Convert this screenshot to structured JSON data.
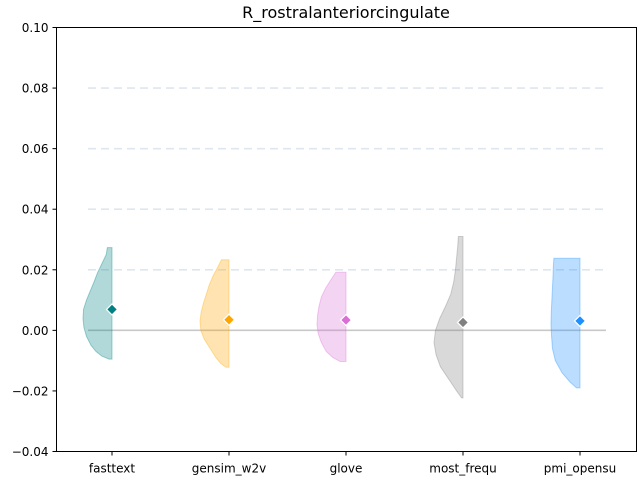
{
  "chart_data": {
    "type": "violin",
    "title": "R_rostralanteriorcingulate",
    "xlabel": "",
    "ylabel": "",
    "ylim": [
      -0.04,
      0.1
    ],
    "yticks": [
      "−0.04",
      "−0.02",
      "0.00",
      "0.02",
      "0.04",
      "0.06",
      "0.08",
      "0.10"
    ],
    "yticks_values": [
      -0.04,
      -0.02,
      0.0,
      0.02,
      0.04,
      0.06,
      0.08,
      0.1
    ],
    "grid": "dashed horizontal",
    "reference_line": 0.0,
    "categories": [
      "fasttext",
      "gensim_w2v",
      "glove",
      "most_frequ",
      "pmi_opensu"
    ],
    "series": [
      {
        "color": "#008080",
        "mean": 0.0069,
        "min": -0.0095,
        "max": 0.0273,
        "density_profile": [
          [
            -0.0095,
            0.1
          ],
          [
            -0.0085,
            0.35
          ],
          [
            -0.007,
            0.55
          ],
          [
            -0.005,
            0.72
          ],
          [
            -0.002,
            0.88
          ],
          [
            0.001,
            0.97
          ],
          [
            0.004,
            1.0
          ],
          [
            0.007,
            0.98
          ],
          [
            0.01,
            0.88
          ],
          [
            0.013,
            0.75
          ],
          [
            0.016,
            0.62
          ],
          [
            0.019,
            0.5
          ],
          [
            0.022,
            0.35
          ],
          [
            0.025,
            0.2
          ],
          [
            0.0273,
            0.16
          ]
        ]
      },
      {
        "color": "#FFA500",
        "mean": 0.0035,
        "min": -0.0122,
        "max": 0.0233,
        "density_profile": [
          [
            -0.0122,
            0.1
          ],
          [
            -0.011,
            0.28
          ],
          [
            -0.009,
            0.45
          ],
          [
            -0.006,
            0.65
          ],
          [
            -0.003,
            0.85
          ],
          [
            0.0,
            0.97
          ],
          [
            0.003,
            1.0
          ],
          [
            0.006,
            0.96
          ],
          [
            0.009,
            0.88
          ],
          [
            0.012,
            0.78
          ],
          [
            0.015,
            0.68
          ],
          [
            0.018,
            0.55
          ],
          [
            0.021,
            0.38
          ],
          [
            0.0233,
            0.26
          ]
        ]
      },
      {
        "color": "#DA70D6",
        "mean": 0.0034,
        "min": -0.0103,
        "max": 0.0192,
        "density_profile": [
          [
            -0.0103,
            0.2
          ],
          [
            -0.009,
            0.45
          ],
          [
            -0.007,
            0.68
          ],
          [
            -0.004,
            0.85
          ],
          [
            -0.001,
            0.96
          ],
          [
            0.002,
            1.0
          ],
          [
            0.005,
            0.98
          ],
          [
            0.008,
            0.93
          ],
          [
            0.011,
            0.85
          ],
          [
            0.014,
            0.7
          ],
          [
            0.017,
            0.5
          ],
          [
            0.0192,
            0.35
          ]
        ]
      },
      {
        "color": "#808080",
        "mean": 0.0026,
        "min": -0.0223,
        "max": 0.031,
        "density_profile": [
          [
            -0.0223,
            0.05
          ],
          [
            -0.02,
            0.22
          ],
          [
            -0.016,
            0.5
          ],
          [
            -0.012,
            0.78
          ],
          [
            -0.008,
            0.93
          ],
          [
            -0.004,
            1.0
          ],
          [
            0.0,
            0.95
          ],
          [
            0.004,
            0.8
          ],
          [
            0.008,
            0.6
          ],
          [
            0.012,
            0.42
          ],
          [
            0.016,
            0.32
          ],
          [
            0.02,
            0.26
          ],
          [
            0.024,
            0.22
          ],
          [
            0.028,
            0.18
          ],
          [
            0.031,
            0.16
          ]
        ]
      },
      {
        "color": "#1E90FF",
        "mean": 0.0031,
        "min": -0.019,
        "max": 0.0238,
        "density_profile": [
          [
            -0.019,
            0.12
          ],
          [
            -0.017,
            0.35
          ],
          [
            -0.014,
            0.62
          ],
          [
            -0.01,
            0.85
          ],
          [
            -0.006,
            0.95
          ],
          [
            -0.002,
            0.98
          ],
          [
            0.002,
            1.0
          ],
          [
            0.006,
            0.99
          ],
          [
            0.01,
            0.97
          ],
          [
            0.014,
            0.95
          ],
          [
            0.018,
            0.93
          ],
          [
            0.021,
            0.92
          ],
          [
            0.0238,
            0.9
          ]
        ]
      }
    ]
  }
}
